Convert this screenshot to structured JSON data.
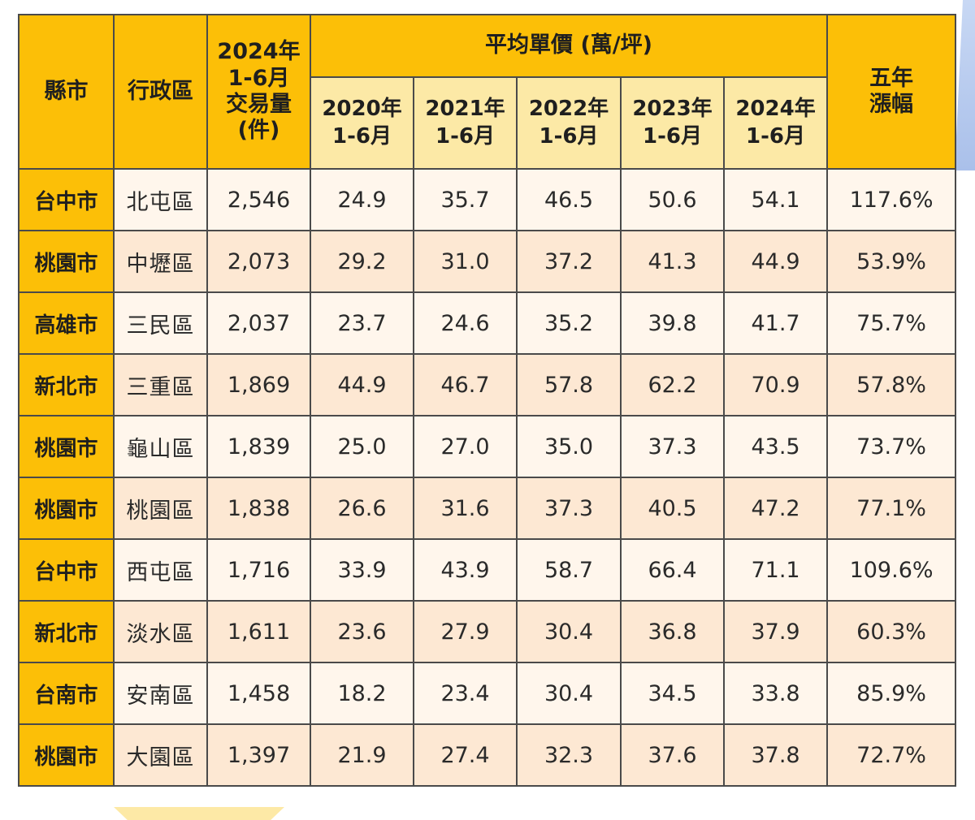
{
  "colors": {
    "header_gold": "#fcbf07",
    "subheader_cream": "#fce9a6",
    "row_light": "#fff6ec",
    "row_peach": "#fde8d3",
    "border": "#4a4a4a"
  },
  "table": {
    "headers": {
      "county": "縣市",
      "district": "行政區",
      "volume": "2024年\n1-6月\n交易量\n(件)",
      "avg_price_group": "平均單價 (萬/坪)",
      "years": [
        "2020年\n1-6月",
        "2021年\n1-6月",
        "2022年\n1-6月",
        "2023年\n1-6月",
        "2024年\n1-6月"
      ],
      "growth": "五年\n漲幅"
    },
    "rows": [
      {
        "county": "台中市",
        "district": "北屯區",
        "volume": "2,546",
        "prices": [
          "24.9",
          "35.7",
          "46.5",
          "50.6",
          "54.1"
        ],
        "growth": "117.6%"
      },
      {
        "county": "桃園市",
        "district": "中壢區",
        "volume": "2,073",
        "prices": [
          "29.2",
          "31.0",
          "37.2",
          "41.3",
          "44.9"
        ],
        "growth": "53.9%"
      },
      {
        "county": "高雄市",
        "district": "三民區",
        "volume": "2,037",
        "prices": [
          "23.7",
          "24.6",
          "35.2",
          "39.8",
          "41.7"
        ],
        "growth": "75.7%"
      },
      {
        "county": "新北市",
        "district": "三重區",
        "volume": "1,869",
        "prices": [
          "44.9",
          "46.7",
          "57.8",
          "62.2",
          "70.9"
        ],
        "growth": "57.8%"
      },
      {
        "county": "桃園市",
        "district": "龜山區",
        "volume": "1,839",
        "prices": [
          "25.0",
          "27.0",
          "35.0",
          "37.3",
          "43.5"
        ],
        "growth": "73.7%"
      },
      {
        "county": "桃園市",
        "district": "桃園區",
        "volume": "1,838",
        "prices": [
          "26.6",
          "31.6",
          "37.3",
          "40.5",
          "47.2"
        ],
        "growth": "77.1%"
      },
      {
        "county": "台中市",
        "district": "西屯區",
        "volume": "1,716",
        "prices": [
          "33.9",
          "43.9",
          "58.7",
          "66.4",
          "71.1"
        ],
        "growth": "109.6%"
      },
      {
        "county": "新北市",
        "district": "淡水區",
        "volume": "1,611",
        "prices": [
          "23.6",
          "27.9",
          "30.4",
          "36.8",
          "37.9"
        ],
        "growth": "60.3%"
      },
      {
        "county": "台南市",
        "district": "安南區",
        "volume": "1,458",
        "prices": [
          "18.2",
          "23.4",
          "30.4",
          "34.5",
          "33.8"
        ],
        "growth": "85.9%"
      },
      {
        "county": "桃園市",
        "district": "大園區",
        "volume": "1,397",
        "prices": [
          "21.9",
          "27.4",
          "32.3",
          "37.6",
          "37.8"
        ],
        "growth": "72.7%"
      }
    ]
  }
}
